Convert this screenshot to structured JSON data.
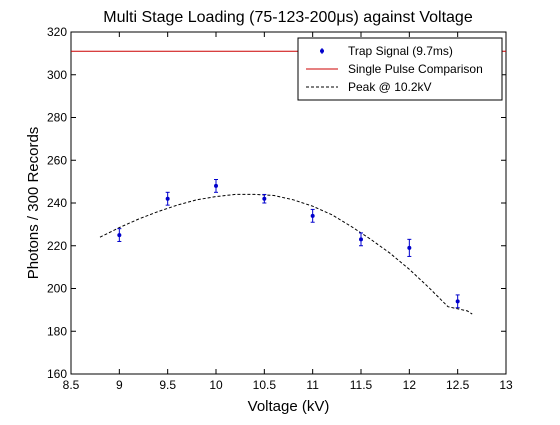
{
  "chart_data": {
    "type": "scatter",
    "title": "Multi Stage Loading (75-123-200μs) against Voltage",
    "xlabel": "Voltage (kV)",
    "ylabel": "Photons / 300 Records",
    "xlim": [
      8.5,
      13
    ],
    "ylim": [
      160,
      320
    ],
    "xticks": [
      8.5,
      9,
      9.5,
      10,
      10.5,
      11,
      11.5,
      12,
      12.5,
      13
    ],
    "yticks": [
      160,
      180,
      200,
      220,
      240,
      260,
      280,
      300,
      320
    ],
    "grid": false,
    "legend_position": "top-right",
    "colors": {
      "trap_signal": "#0000cc",
      "single_pulse": "#cc0000",
      "peak_fit": "#000000"
    },
    "series": [
      {
        "name": "Trap Signal (9.7ms)",
        "kind": "errorbar-points",
        "x": [
          9,
          9.5,
          10,
          10.5,
          11,
          11.5,
          12,
          12.5
        ],
        "y": [
          225,
          242,
          248,
          242,
          234,
          223,
          219,
          194
        ],
        "yerr": [
          3,
          3,
          3,
          2,
          3,
          3,
          4,
          3
        ]
      },
      {
        "name": "Single Pulse Comparison",
        "kind": "hline",
        "y": 311
      },
      {
        "name": "Peak @ 10.2kV",
        "kind": "dashed-curve",
        "x": [
          8.8,
          9.0,
          9.2,
          9.4,
          9.6,
          9.8,
          10.0,
          10.2,
          10.4,
          10.6,
          10.8,
          11.0,
          11.2,
          11.4,
          11.6,
          11.8,
          12.0,
          12.2,
          12.4,
          12.6,
          12.65
        ],
        "y": [
          224,
          228.5,
          232.5,
          236,
          239,
          241.5,
          243,
          244,
          244,
          243.5,
          241.5,
          238.5,
          234.5,
          229,
          223,
          216.5,
          209,
          200.5,
          191.5,
          189.5,
          188
        ]
      }
    ]
  }
}
